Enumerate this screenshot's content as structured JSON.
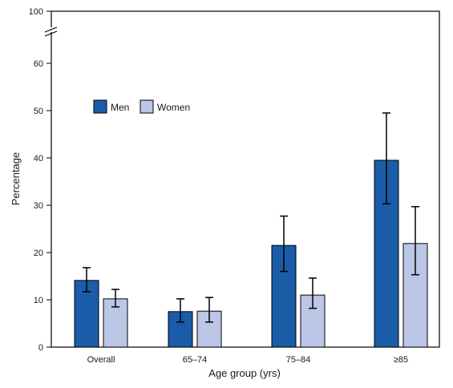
{
  "chart_data": {
    "type": "bar",
    "xlabel": "Age group (yrs)",
    "ylabel": "Percentage",
    "categories": [
      "Overall",
      "65–74",
      "75–84",
      "≥85"
    ],
    "series": [
      {
        "name": "Men",
        "color": "#1a5ca8",
        "values": [
          14.1,
          7.5,
          21.5,
          39.5
        ],
        "ci_lower": [
          11.7,
          5.3,
          16.0,
          30.3
        ],
        "ci_upper": [
          16.8,
          10.2,
          27.7,
          49.5
        ]
      },
      {
        "name": "Women",
        "color": "#bcc6e6",
        "values": [
          10.2,
          7.6,
          11.0,
          21.9
        ],
        "ci_lower": [
          8.5,
          5.3,
          8.2,
          15.3
        ],
        "ci_upper": [
          12.2,
          10.5,
          14.6,
          29.7
        ]
      }
    ],
    "ylim": [
      0,
      100
    ],
    "yticks": [
      "0",
      "10",
      "20",
      "30",
      "40",
      "50",
      "60",
      "100"
    ],
    "axis_break": true,
    "grid": false,
    "legend_position": "upper-left"
  }
}
